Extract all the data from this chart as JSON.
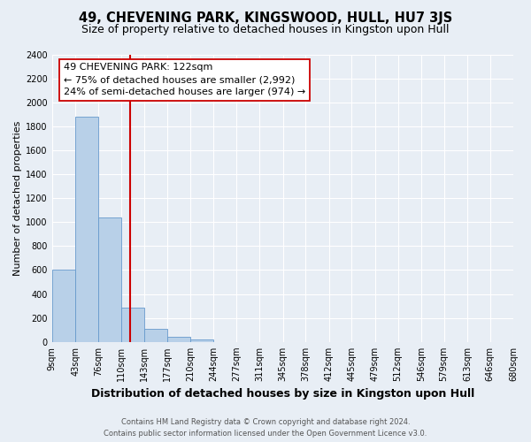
{
  "title": "49, CHEVENING PARK, KINGSWOOD, HULL, HU7 3JS",
  "subtitle": "Size of property relative to detached houses in Kingston upon Hull",
  "xlabel": "Distribution of detached houses by size in Kingston upon Hull",
  "ylabel": "Number of detached properties",
  "bin_labels": [
    "9sqm",
    "43sqm",
    "76sqm",
    "110sqm",
    "143sqm",
    "177sqm",
    "210sqm",
    "244sqm",
    "277sqm",
    "311sqm",
    "345sqm",
    "378sqm",
    "412sqm",
    "445sqm",
    "479sqm",
    "512sqm",
    "546sqm",
    "579sqm",
    "613sqm",
    "646sqm",
    "680sqm"
  ],
  "bar_values": [
    600,
    1880,
    1040,
    285,
    110,
    45,
    20,
    0,
    0,
    0,
    0,
    0,
    0,
    0,
    0,
    0,
    0,
    0,
    0,
    0
  ],
  "bin_edges": [
    9,
    43,
    76,
    110,
    143,
    177,
    210,
    244,
    277,
    311,
    345,
    378,
    412,
    445,
    479,
    512,
    546,
    579,
    613,
    646,
    680
  ],
  "bar_color": "#b8d0e8",
  "bar_edge_color": "#6699cc",
  "property_size": 122,
  "vline_color": "#cc0000",
  "annotation_line1": "49 CHEVENING PARK: 122sqm",
  "annotation_line2": "← 75% of detached houses are smaller (2,992)",
  "annotation_line3": "24% of semi-detached houses are larger (974) →",
  "annotation_box_color": "#ffffff",
  "annotation_box_edge": "#cc0000",
  "ylim": [
    0,
    2400
  ],
  "yticks": [
    0,
    200,
    400,
    600,
    800,
    1000,
    1200,
    1400,
    1600,
    1800,
    2000,
    2200,
    2400
  ],
  "footer_line1": "Contains HM Land Registry data © Crown copyright and database right 2024.",
  "footer_line2": "Contains public sector information licensed under the Open Government Licence v3.0.",
  "bg_color": "#e8eef5",
  "plot_bg_color": "#e8eef5",
  "title_fontsize": 10.5,
  "subtitle_fontsize": 9,
  "xlabel_fontsize": 9,
  "ylabel_fontsize": 8,
  "tick_fontsize": 7,
  "annotation_fontsize": 8,
  "footer_fontsize": 6
}
